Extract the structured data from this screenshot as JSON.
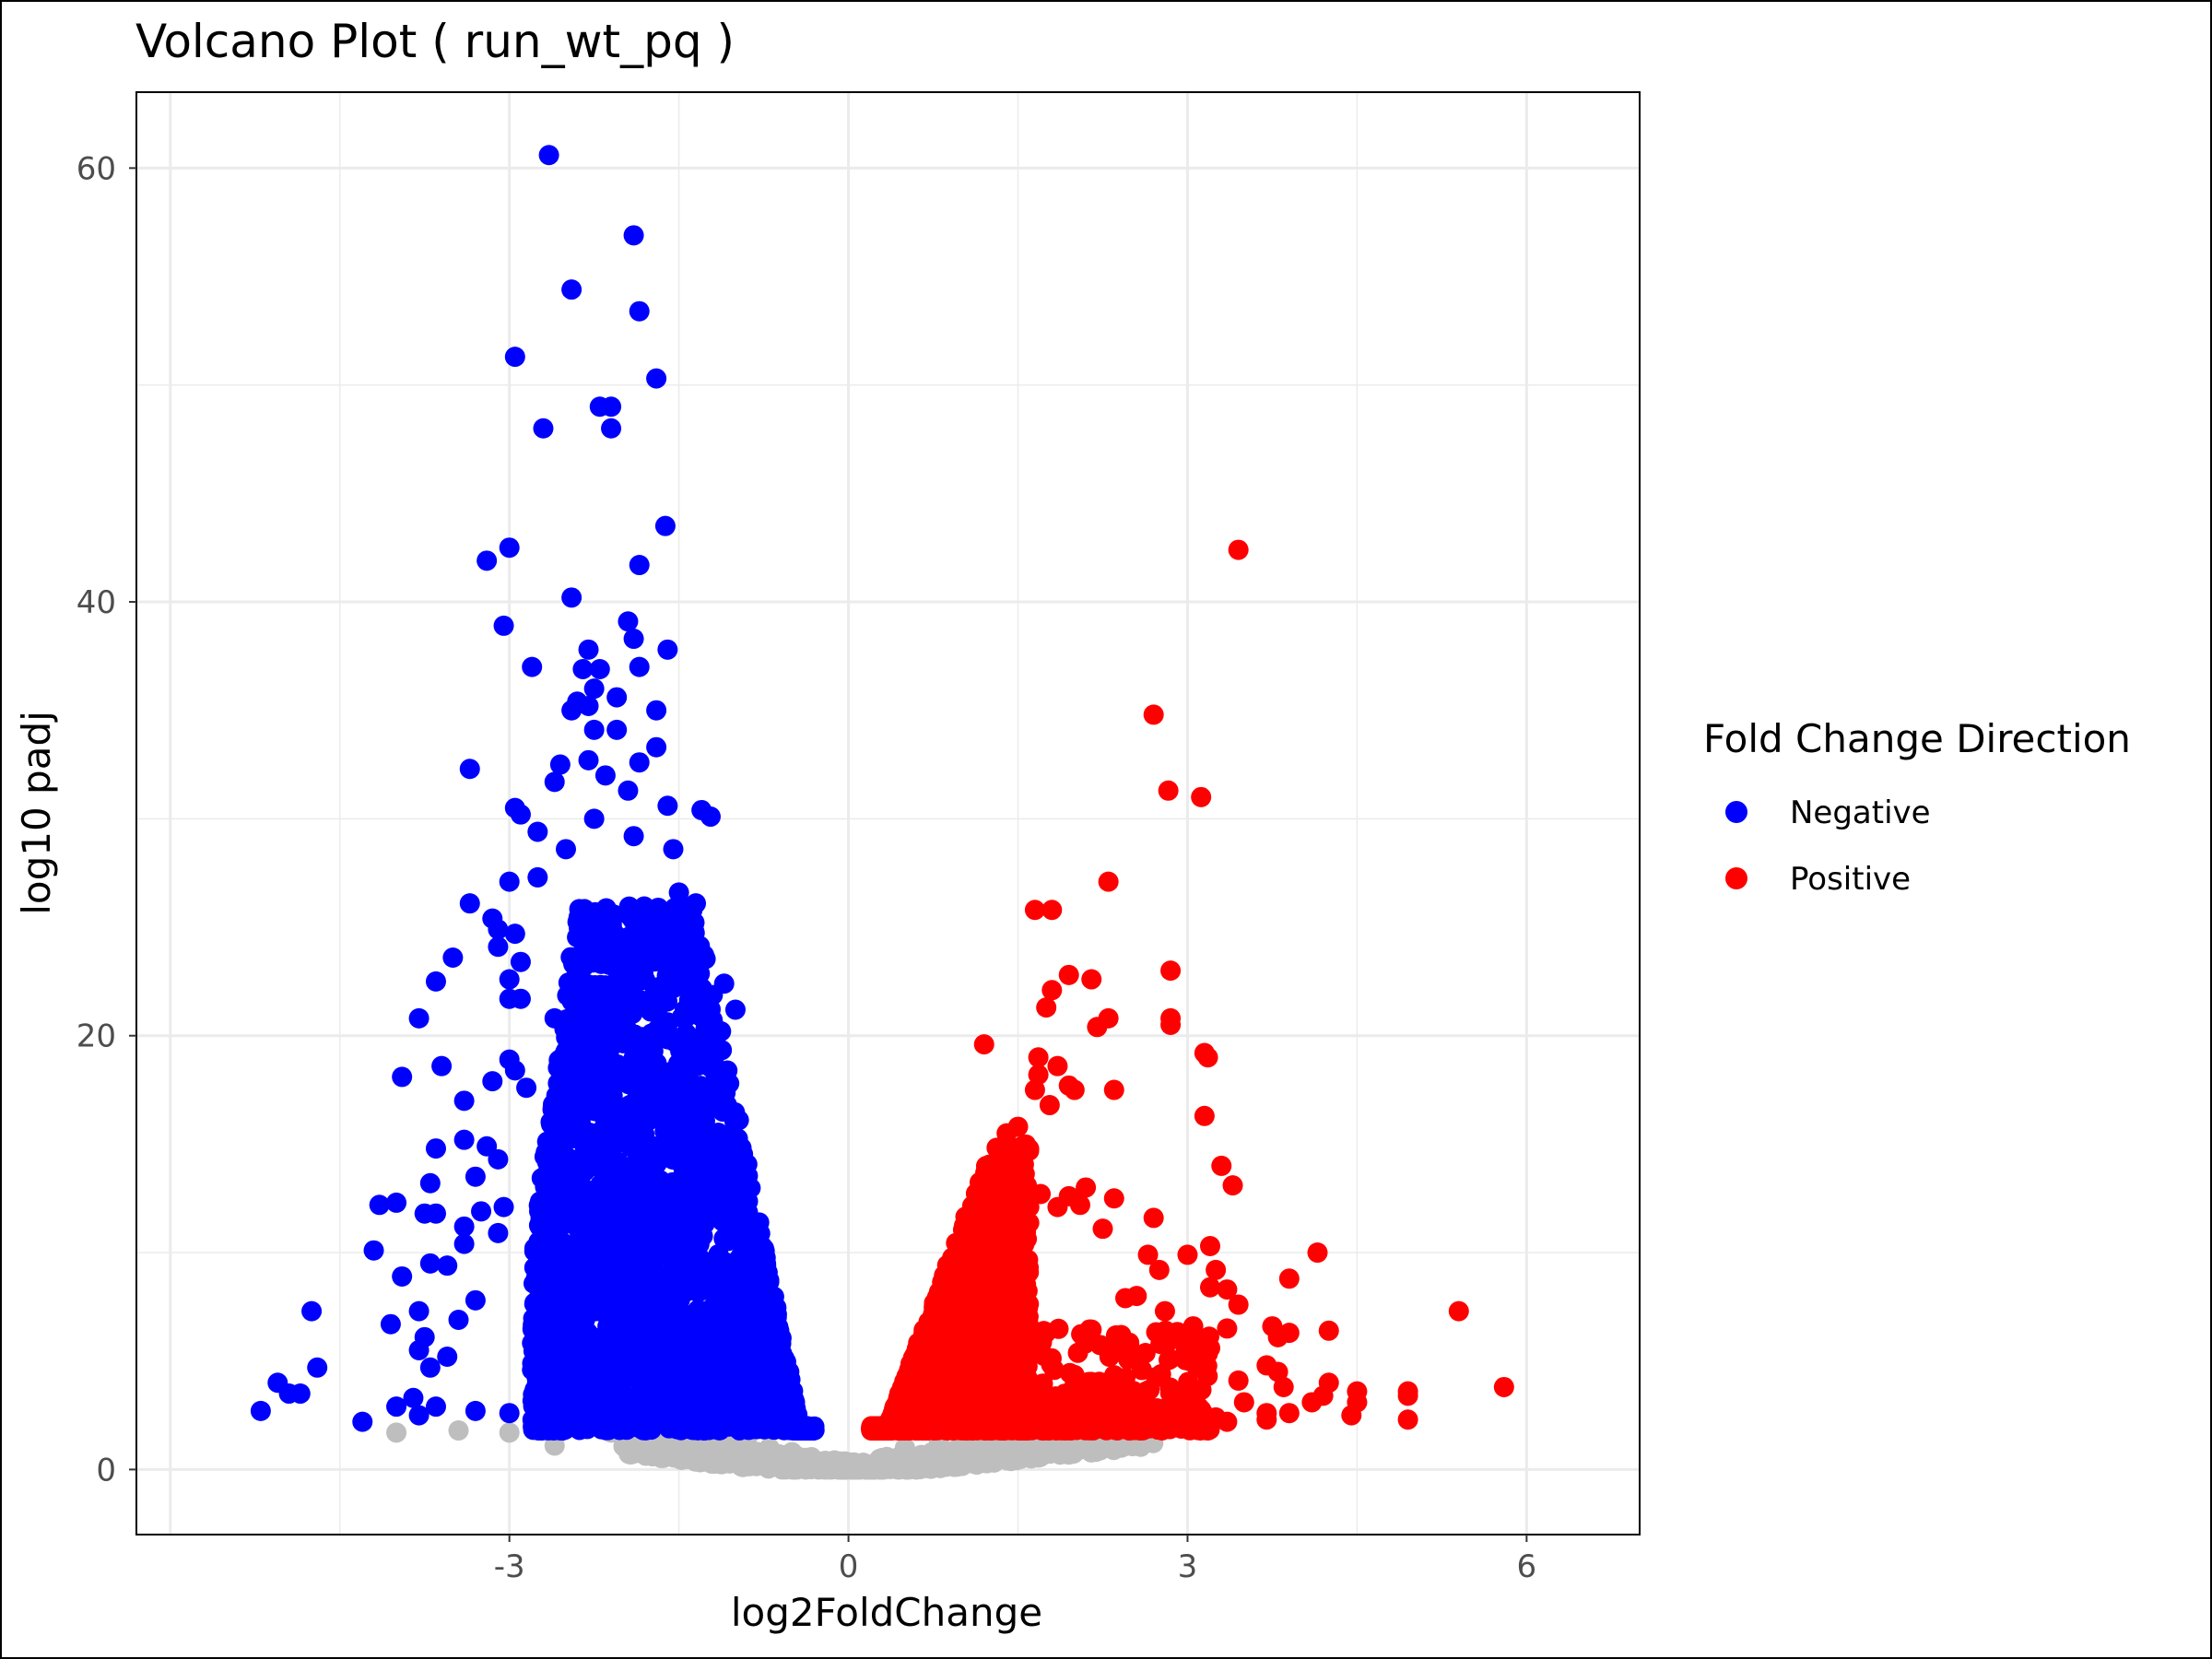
{
  "chart_data": {
    "type": "scatter",
    "title": "Volcano Plot ( run_wt_pq )",
    "xlabel": "log2FoldChange",
    "ylabel": "log10 padj",
    "xlim": [
      -6.3,
      7.0
    ],
    "ylim": [
      -3,
      63.5
    ],
    "xticks": [
      -3,
      0,
      3,
      6
    ],
    "xtick_labels": [
      "-3",
      "0",
      "3",
      "6"
    ],
    "yticks": [
      0,
      20,
      40,
      60
    ],
    "ytick_labels": [
      "0",
      "20",
      "40",
      "60"
    ],
    "grid": true,
    "legend": {
      "title": "Fold Change Direction",
      "position": "right",
      "entries": [
        {
          "label": "Negative",
          "color": "#0000ff"
        },
        {
          "label": "Positive",
          "color": "#ff0000"
        }
      ]
    },
    "colors": {
      "negative": "#0000ff",
      "positive": "#ff0000",
      "not_significant": "#bebebe"
    },
    "series": [
      {
        "key": "negative",
        "color": "#0000ff",
        "points": [
          [
            -2.65,
            60.6
          ],
          [
            -1.9,
            56.9
          ],
          [
            -2.45,
            54.4
          ],
          [
            -1.85,
            53.4
          ],
          [
            -2.95,
            51.3
          ],
          [
            -1.7,
            50.3
          ],
          [
            -2.2,
            49.0
          ],
          [
            -2.1,
            49.0
          ],
          [
            -2.7,
            48.0
          ],
          [
            -2.1,
            48.0
          ],
          [
            -1.62,
            43.5
          ],
          [
            -3.0,
            42.5
          ],
          [
            -3.2,
            41.9
          ],
          [
            -1.85,
            41.7
          ],
          [
            -2.45,
            40.2
          ],
          [
            -1.95,
            39.1
          ],
          [
            -3.05,
            38.9
          ],
          [
            -1.9,
            38.3
          ],
          [
            -2.3,
            37.8
          ],
          [
            -1.6,
            37.8
          ],
          [
            -2.8,
            37.0
          ],
          [
            -1.85,
            37.0
          ],
          [
            -2.35,
            36.9
          ],
          [
            -2.2,
            36.9
          ],
          [
            -2.25,
            36.0
          ],
          [
            -2.4,
            35.4
          ],
          [
            -2.05,
            35.6
          ],
          [
            -2.3,
            35.2
          ],
          [
            -1.7,
            35.0
          ],
          [
            -2.45,
            35.0
          ],
          [
            -2.25,
            34.1
          ],
          [
            -2.05,
            34.1
          ],
          [
            -1.7,
            33.3
          ],
          [
            -3.35,
            32.3
          ],
          [
            -2.55,
            32.5
          ],
          [
            -2.3,
            32.7
          ],
          [
            -1.85,
            32.6
          ],
          [
            -2.15,
            32.0
          ],
          [
            -1.95,
            31.3
          ],
          [
            -2.6,
            31.7
          ],
          [
            -1.6,
            30.6
          ],
          [
            -2.95,
            30.5
          ],
          [
            -2.9,
            30.2
          ],
          [
            -1.3,
            30.4
          ],
          [
            -1.22,
            30.1
          ],
          [
            -2.25,
            30.0
          ],
          [
            -2.75,
            29.4
          ],
          [
            -1.9,
            29.2
          ],
          [
            -1.55,
            28.6
          ],
          [
            -2.5,
            28.6
          ],
          [
            -3.0,
            27.1
          ],
          [
            -2.75,
            27.3
          ],
          [
            -3.35,
            26.1
          ],
          [
            -1.5,
            26.6
          ],
          [
            -1.35,
            26.1
          ],
          [
            -3.15,
            25.4
          ],
          [
            -3.1,
            24.9
          ],
          [
            -2.95,
            24.7
          ],
          [
            -3.1,
            24.1
          ],
          [
            -1.35,
            24.3
          ],
          [
            -3.5,
            23.6
          ],
          [
            -2.9,
            23.4
          ],
          [
            -3.65,
            22.5
          ],
          [
            -3.0,
            22.6
          ],
          [
            -1.1,
            22.4
          ],
          [
            -3.0,
            21.7
          ],
          [
            -2.9,
            21.7
          ],
          [
            -1.0,
            21.2
          ],
          [
            -3.8,
            20.8
          ],
          [
            -2.6,
            20.8
          ],
          [
            -3.6,
            18.6
          ],
          [
            -3.95,
            18.1
          ],
          [
            -3.0,
            18.9
          ],
          [
            -2.95,
            18.4
          ],
          [
            -3.15,
            17.9
          ],
          [
            -3.4,
            17.0
          ],
          [
            -2.85,
            17.6
          ],
          [
            -3.4,
            15.2
          ],
          [
            -3.2,
            14.9
          ],
          [
            -3.65,
            14.8
          ],
          [
            -3.1,
            14.3
          ],
          [
            -3.3,
            13.5
          ],
          [
            -3.7,
            13.2
          ],
          [
            -3.75,
            11.8
          ],
          [
            -3.25,
            11.9
          ],
          [
            -4.0,
            12.3
          ],
          [
            -4.15,
            12.2
          ],
          [
            -3.05,
            12.1
          ],
          [
            -3.65,
            11.8
          ],
          [
            -3.4,
            11.2
          ],
          [
            -3.1,
            10.9
          ],
          [
            -3.4,
            10.4
          ],
          [
            -4.2,
            10.1
          ],
          [
            -3.7,
            9.5
          ],
          [
            -3.55,
            9.4
          ],
          [
            -3.95,
            8.9
          ],
          [
            -3.3,
            7.8
          ],
          [
            -4.75,
            7.3
          ],
          [
            -3.8,
            7.3
          ],
          [
            -3.45,
            6.9
          ],
          [
            -4.05,
            6.7
          ],
          [
            -3.75,
            6.1
          ],
          [
            -3.55,
            5.2
          ],
          [
            -3.8,
            5.5
          ],
          [
            -4.7,
            4.7
          ],
          [
            -3.7,
            4.7
          ],
          [
            -5.05,
            4.0
          ],
          [
            -4.95,
            3.5
          ],
          [
            -4.85,
            3.5
          ],
          [
            -3.85,
            3.3
          ],
          [
            -5.2,
            2.7
          ],
          [
            -4.0,
            2.9
          ],
          [
            -3.65,
            2.9
          ],
          [
            -3.8,
            2.5
          ],
          [
            -4.3,
            2.2
          ],
          [
            -3.3,
            2.7
          ],
          [
            -3.0,
            2.6
          ]
        ],
        "clusters": [
          {
            "x_range": [
              -2.8,
              -0.3
            ],
            "y_range": [
              1.8,
              26.0
            ],
            "shape": "volcano_left"
          }
        ]
      },
      {
        "key": "positive",
        "color": "#ff0000",
        "points": [
          [
            3.45,
            42.4
          ],
          [
            2.7,
            34.8
          ],
          [
            2.83,
            31.3
          ],
          [
            3.12,
            31.0
          ],
          [
            2.3,
            27.1
          ],
          [
            1.65,
            25.8
          ],
          [
            1.8,
            25.8
          ],
          [
            2.85,
            23.0
          ],
          [
            1.95,
            22.8
          ],
          [
            2.15,
            22.6
          ],
          [
            1.8,
            22.1
          ],
          [
            2.3,
            20.8
          ],
          [
            2.85,
            20.8
          ],
          [
            2.85,
            20.5
          ],
          [
            1.75,
            21.3
          ],
          [
            2.2,
            20.4
          ],
          [
            1.2,
            19.6
          ],
          [
            3.15,
            19.2
          ],
          [
            3.18,
            19.0
          ],
          [
            1.68,
            19.0
          ],
          [
            1.85,
            18.6
          ],
          [
            1.68,
            18.2
          ],
          [
            1.95,
            17.7
          ],
          [
            2.0,
            17.5
          ],
          [
            2.35,
            17.5
          ],
          [
            1.65,
            17.5
          ],
          [
            1.78,
            16.8
          ],
          [
            3.15,
            16.3
          ],
          [
            1.5,
            15.8
          ],
          [
            1.4,
            15.5
          ],
          [
            3.3,
            14.0
          ],
          [
            3.4,
            13.1
          ],
          [
            2.1,
            13.0
          ],
          [
            1.7,
            12.7
          ],
          [
            1.95,
            12.6
          ],
          [
            2.35,
            12.5
          ],
          [
            1.85,
            12.1
          ],
          [
            2.05,
            12.2
          ],
          [
            2.7,
            11.6
          ],
          [
            2.25,
            11.1
          ],
          [
            3.2,
            10.3
          ],
          [
            2.65,
            9.9
          ],
          [
            3.0,
            9.9
          ],
          [
            4.15,
            10.0
          ],
          [
            2.75,
            9.2
          ],
          [
            3.25,
            9.2
          ],
          [
            3.2,
            8.4
          ],
          [
            3.35,
            8.3
          ],
          [
            3.9,
            8.8
          ],
          [
            2.45,
            7.9
          ],
          [
            2.55,
            8.0
          ],
          [
            3.45,
            7.6
          ],
          [
            5.4,
            7.3
          ],
          [
            2.8,
            7.3
          ],
          [
            3.75,
            6.6
          ],
          [
            3.05,
            6.6
          ],
          [
            4.25,
            6.4
          ],
          [
            3.9,
            6.3
          ],
          [
            3.8,
            6.1
          ],
          [
            3.35,
            6.5
          ],
          [
            3.2,
            5.6
          ],
          [
            3.05,
            5.5
          ],
          [
            3.7,
            4.8
          ],
          [
            3.8,
            4.5
          ],
          [
            3.45,
            4.1
          ],
          [
            3.85,
            3.8
          ],
          [
            4.25,
            4.0
          ],
          [
            4.5,
            3.6
          ],
          [
            5.8,
            3.8
          ],
          [
            4.95,
            3.6
          ],
          [
            4.95,
            3.4
          ],
          [
            4.2,
            3.4
          ],
          [
            4.5,
            3.1
          ],
          [
            3.5,
            3.1
          ],
          [
            4.1,
            3.1
          ],
          [
            4.45,
            2.5
          ],
          [
            3.7,
            2.6
          ],
          [
            3.9,
            2.6
          ],
          [
            4.95,
            2.3
          ],
          [
            3.7,
            2.3
          ],
          [
            3.25,
            2.4
          ],
          [
            3.35,
            2.2
          ]
        ],
        "clusters": [
          {
            "x_range": [
              0.2,
              1.6
            ],
            "y_range": [
              1.8,
              15.0
            ],
            "shape": "volcano_right"
          },
          {
            "x_range": [
              1.5,
              3.2
            ],
            "y_range": [
              1.8,
              6.5
            ],
            "shape": "scatter"
          }
        ]
      },
      {
        "key": "not_significant",
        "color": "#bebebe",
        "points": [
          [
            -4.0,
            1.7
          ],
          [
            -3.45,
            1.8
          ],
          [
            -3.0,
            1.7
          ],
          [
            -2.6,
            1.5
          ],
          [
            -2.6,
            1.1
          ],
          [
            -2.1,
            1.7
          ],
          [
            -1.95,
            1.3
          ],
          [
            -1.75,
            1.9
          ],
          [
            -1.55,
            1.6
          ],
          [
            -1.3,
            1.5
          ],
          [
            -1.1,
            1.2
          ],
          [
            -0.9,
            1.4
          ],
          [
            -0.7,
            1.0
          ],
          [
            -0.5,
            0.8
          ],
          [
            0.5,
            1.0
          ],
          [
            0.8,
            1.3
          ],
          [
            1.1,
            1.5
          ],
          [
            1.5,
            1.2
          ],
          [
            1.75,
            1.7
          ],
          [
            2.0,
            1.6
          ],
          [
            2.3,
            1.4
          ],
          [
            2.45,
            1.7
          ],
          [
            2.55,
            1.9
          ],
          [
            2.6,
            1.5
          ]
        ],
        "clusters": [
          {
            "x_range": [
              -2.0,
              2.7
            ],
            "y_range": [
              0.0,
              2.0
            ],
            "shape": "vee"
          }
        ]
      }
    ]
  }
}
